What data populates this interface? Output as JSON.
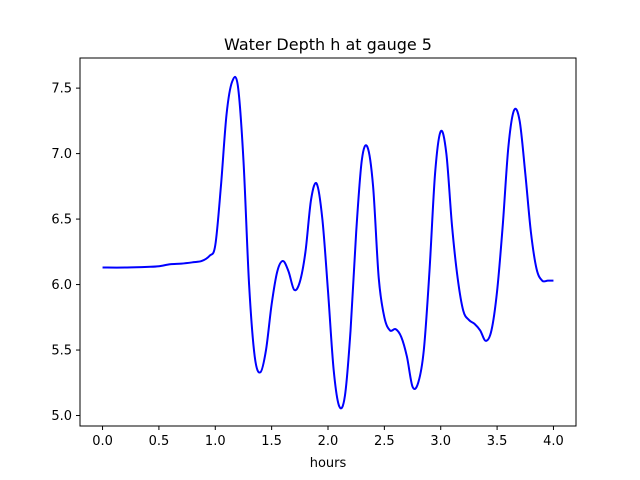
{
  "chart_data": {
    "type": "line",
    "title": "Water Depth h at gauge 5",
    "xlabel": "hours",
    "ylabel": "",
    "xlim": [
      -0.2,
      4.2
    ],
    "ylim": [
      4.92,
      7.73
    ],
    "xticks": [
      "0.0",
      "0.5",
      "1.0",
      "1.5",
      "2.0",
      "2.5",
      "3.0",
      "3.5",
      "4.0"
    ],
    "yticks": [
      "5.0",
      "5.5",
      "6.0",
      "6.5",
      "7.0",
      "7.5"
    ],
    "grid": false,
    "line_color": "#0000ff",
    "series": [
      {
        "x": [
          0.0,
          0.2,
          0.4,
          0.5,
          0.6,
          0.7,
          0.8,
          0.88,
          0.95,
          1.0,
          1.05,
          1.1,
          1.15,
          1.2,
          1.25,
          1.3,
          1.35,
          1.4,
          1.45,
          1.5,
          1.55,
          1.6,
          1.65,
          1.7,
          1.75,
          1.8,
          1.85,
          1.9,
          1.95,
          2.0,
          2.05,
          2.1,
          2.15,
          2.2,
          2.25,
          2.3,
          2.35,
          2.4,
          2.45,
          2.5,
          2.55,
          2.6,
          2.65,
          2.7,
          2.75,
          2.8,
          2.85,
          2.9,
          2.95,
          3.0,
          3.05,
          3.1,
          3.15,
          3.2,
          3.25,
          3.3,
          3.35,
          3.4,
          3.45,
          3.5,
          3.55,
          3.6,
          3.65,
          3.7,
          3.75,
          3.8,
          3.85,
          3.9,
          3.95,
          4.0
        ],
        "y": [
          6.13,
          6.13,
          6.135,
          6.14,
          6.155,
          6.16,
          6.17,
          6.18,
          6.22,
          6.3,
          6.75,
          7.3,
          7.55,
          7.52,
          6.95,
          6.0,
          5.45,
          5.33,
          5.5,
          5.85,
          6.1,
          6.18,
          6.1,
          5.96,
          6.02,
          6.25,
          6.65,
          6.77,
          6.5,
          5.95,
          5.35,
          5.07,
          5.15,
          5.65,
          6.4,
          6.95,
          7.05,
          6.75,
          6.05,
          5.75,
          5.65,
          5.66,
          5.6,
          5.45,
          5.22,
          5.25,
          5.5,
          6.1,
          6.85,
          7.17,
          7.0,
          6.45,
          6.05,
          5.8,
          5.73,
          5.7,
          5.65,
          5.57,
          5.65,
          5.95,
          6.45,
          7.05,
          7.33,
          7.25,
          6.85,
          6.4,
          6.12,
          6.03,
          6.03,
          6.03
        ]
      }
    ]
  }
}
